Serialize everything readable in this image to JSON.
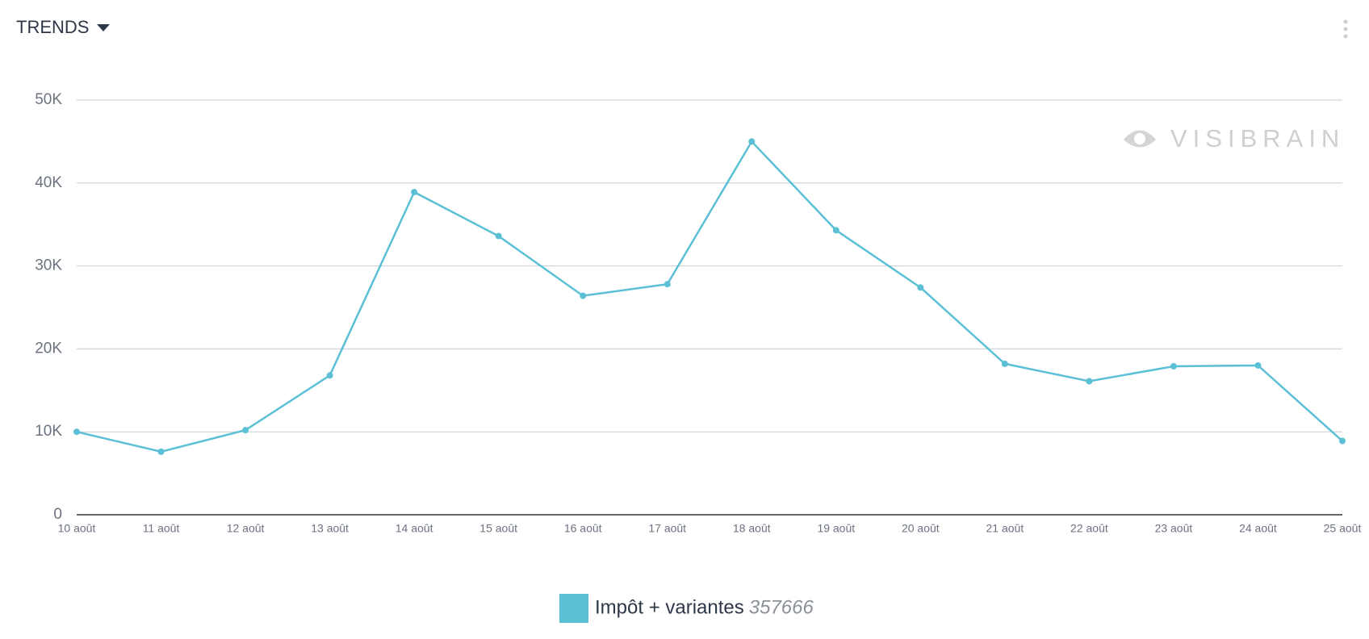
{
  "header": {
    "title": "TRENDS"
  },
  "chart_data": {
    "type": "line",
    "watermark": "VISIBRAIN",
    "categories": [
      "10 août",
      "11 août",
      "12 août",
      "13 août",
      "14 août",
      "15 août",
      "16 août",
      "17 août",
      "18 août",
      "19 août",
      "20 août",
      "21 août",
      "22 août",
      "23 août",
      "24 août",
      "25 août"
    ],
    "series": [
      {
        "name": "Impôt + variantes",
        "color": "#5bc0d6",
        "total": 357666,
        "values": [
          10000,
          7600,
          10200,
          16800,
          38900,
          33600,
          26400,
          27800,
          45000,
          34300,
          27400,
          18200,
          16100,
          17900,
          18000,
          8900
        ]
      }
    ],
    "ylim": [
      0,
      50000
    ],
    "yticks": [
      0,
      {
        "value": 10000,
        "label": "10K"
      },
      {
        "value": 20000,
        "label": "20K"
      },
      {
        "value": 30000,
        "label": "30K"
      },
      {
        "value": 40000,
        "label": "40K"
      },
      {
        "value": 50000,
        "label": "50K"
      }
    ],
    "grid": true,
    "legend": "bottom"
  }
}
